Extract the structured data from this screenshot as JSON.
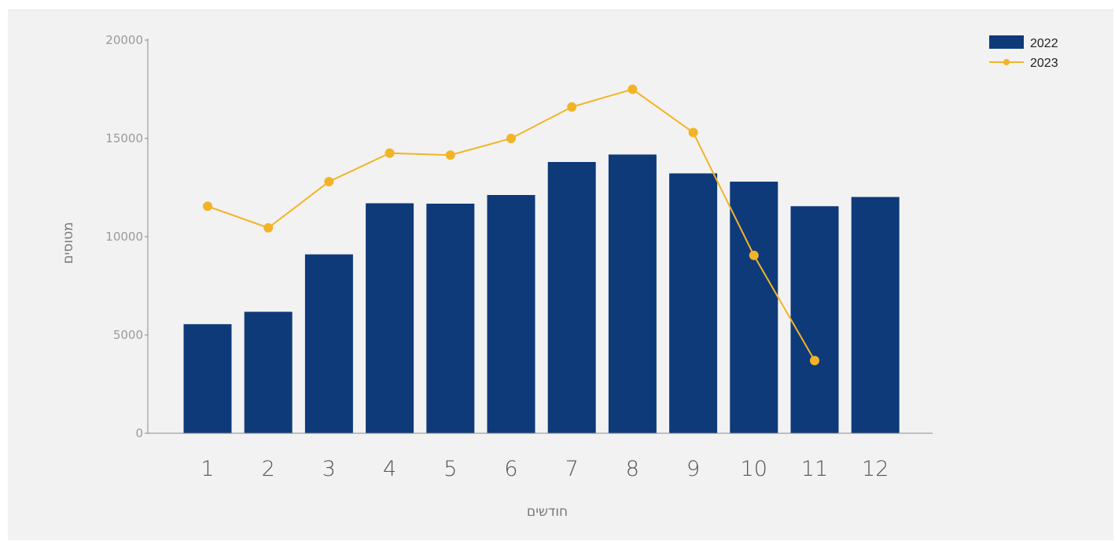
{
  "chart_data": {
    "type": "bar",
    "title": "",
    "xlabel": "חודשים",
    "ylabel": "מטוסים",
    "categories": [
      "1",
      "2",
      "3",
      "4",
      "5",
      "6",
      "7",
      "8",
      "9",
      "10",
      "11",
      "12"
    ],
    "y_ticks": [
      "0",
      "5000",
      "10000",
      "15000",
      "20000"
    ],
    "ylim": [
      0,
      20000
    ],
    "grid": false,
    "legend_position": "top-right",
    "series": [
      {
        "name": "2022",
        "type": "bar",
        "color": "#0e3a7a",
        "values": [
          5550,
          6180,
          9100,
          11700,
          11680,
          12120,
          13800,
          14180,
          13220,
          12800,
          11550,
          12020
        ]
      },
      {
        "name": "2023",
        "type": "line",
        "color": "#f2b426",
        "values": [
          11550,
          10450,
          12800,
          14250,
          14150,
          15000,
          16600,
          17500,
          15300,
          9050,
          3700,
          null
        ]
      }
    ]
  }
}
